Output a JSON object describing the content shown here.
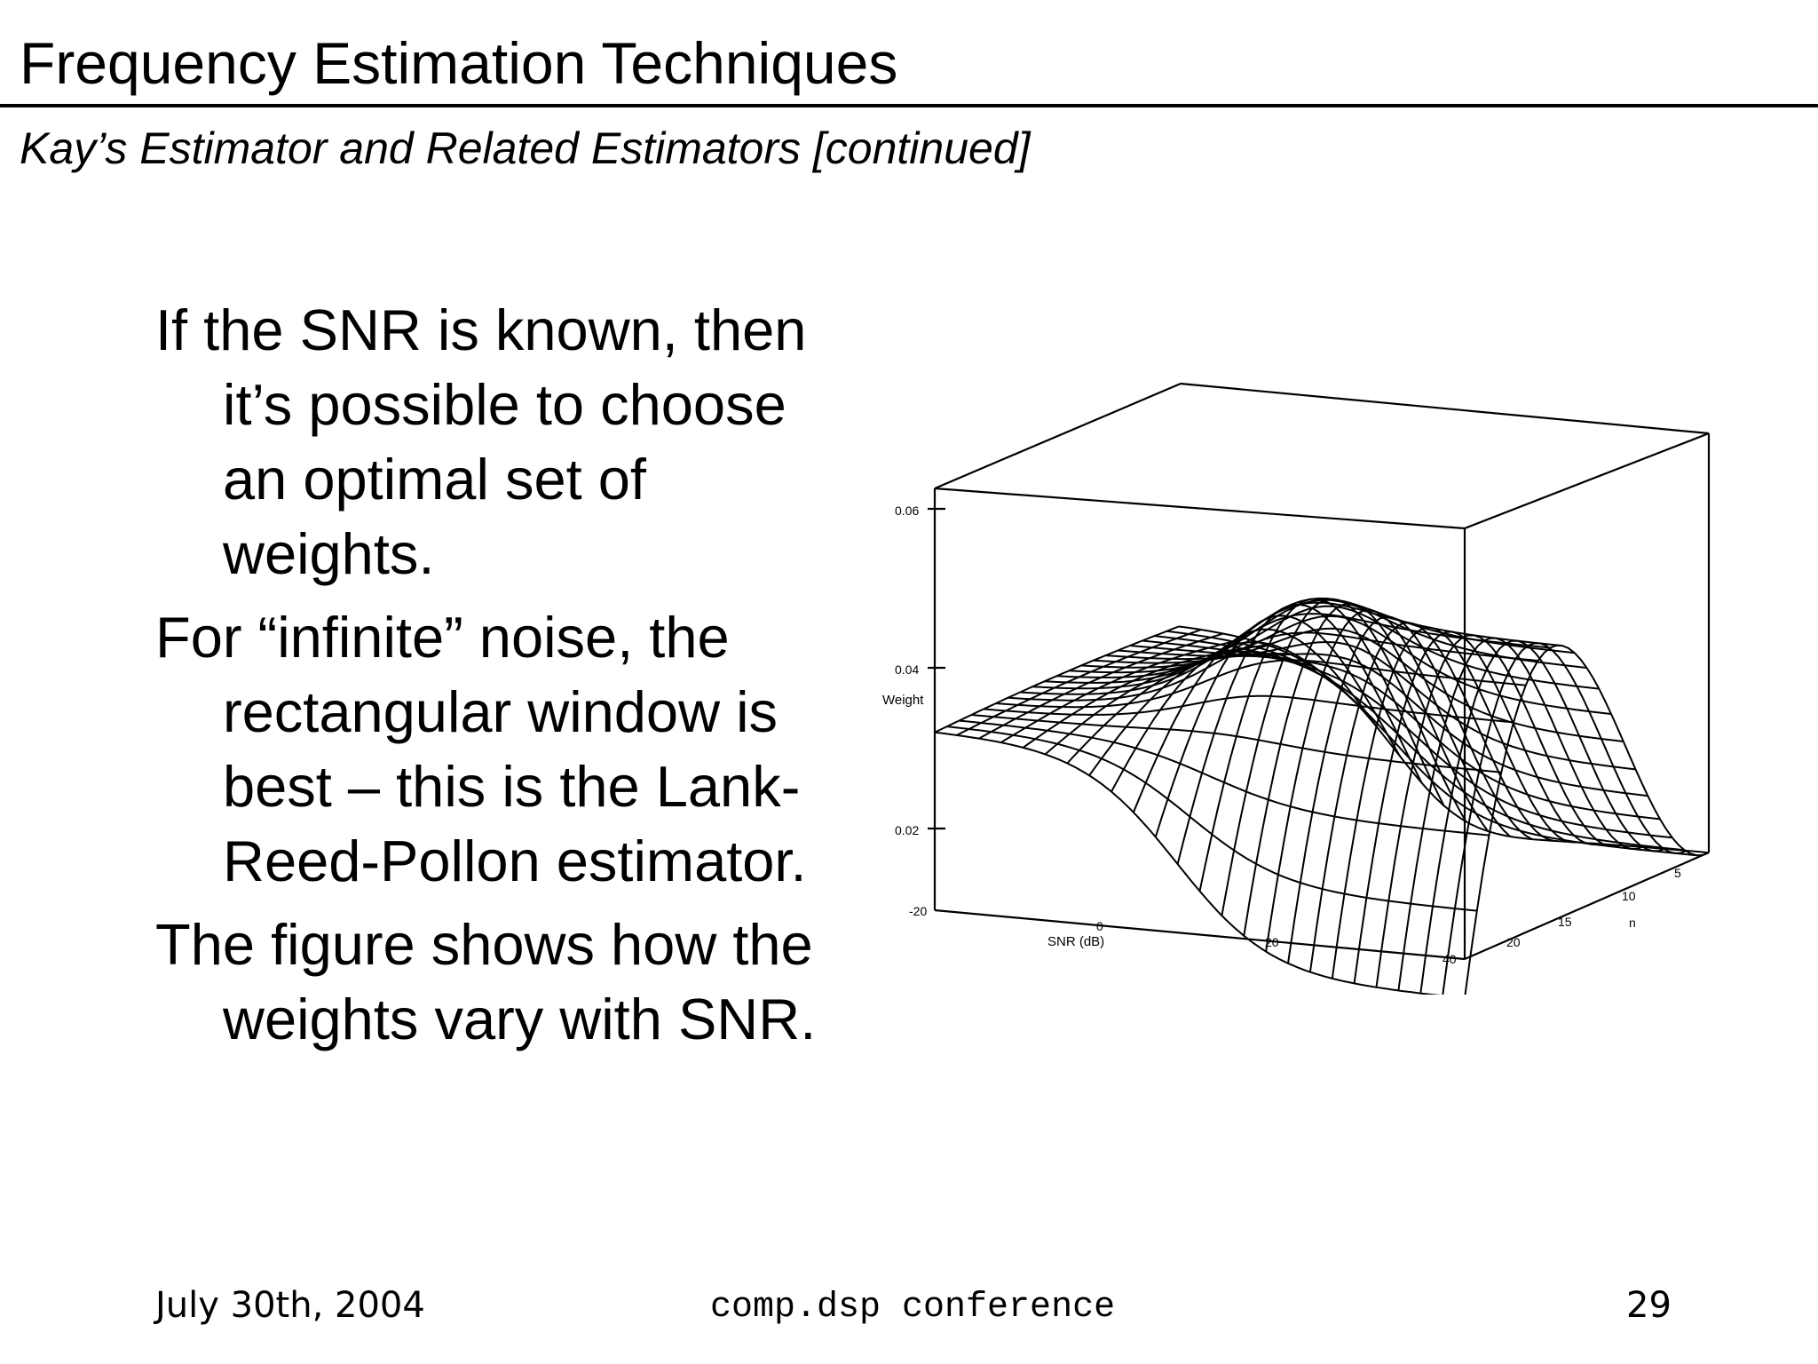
{
  "slide": {
    "title": "Frequency Estimation Techniques",
    "subtitle": "Kay’s Estimator and Related Estimators [continued]",
    "bullets": [
      "If the SNR is known, then it’s possible to choose an optimal set of weights.",
      "For “infinite” noise, the rectangular window is best – this is the Lank-Reed-Pollon estimator.",
      "The figure shows how the weights vary with SNR."
    ]
  },
  "figure": {
    "z_label": "Weight",
    "z_ticks": [
      "0.06",
      "0.04",
      "0.02"
    ],
    "x_label": "SNR (dB)",
    "x_ticks": [
      "-20",
      "0",
      "20",
      "40"
    ],
    "y_label": "n",
    "y_ticks": [
      "5",
      "10",
      "15",
      "20"
    ]
  },
  "footer": {
    "date": "July 30th, 2004",
    "conference": "comp.dsp conference",
    "page": "29"
  }
}
